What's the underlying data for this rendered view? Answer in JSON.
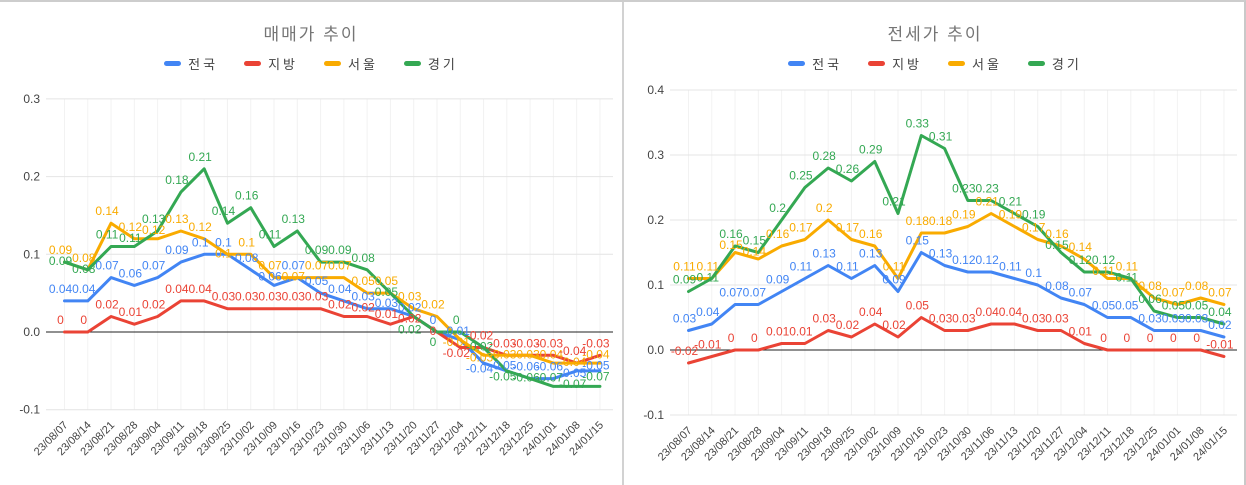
{
  "window": {
    "background": "#ffffff",
    "frame_border_color": "#cdcdcd"
  },
  "chart_data": [
    {
      "type": "line",
      "title": "매매가 추이",
      "legend_position": "top",
      "grid": true,
      "ylim": [
        -0.1,
        0.3
      ],
      "yticks": [
        0.3,
        0.2,
        0.1,
        0,
        -0.1
      ],
      "ytick_labels": [
        "0.3",
        "0.2",
        "0.1",
        "0.0",
        "-0.1"
      ],
      "categories": [
        "23/08/07",
        "23/08/14",
        "23/08/21",
        "23/08/28",
        "23/09/04",
        "23/09/11",
        "23/09/18",
        "23/09/25",
        "23/10/02",
        "23/10/09",
        "23/10/16",
        "23/10/23",
        "23/10/30",
        "23/11/06",
        "23/11/13",
        "23/11/20",
        "23/11/27",
        "23/12/04",
        "23/12/11",
        "23/12/18",
        "23/12/25",
        "24/01/01",
        "24/01/08",
        "24/01/15"
      ],
      "series": [
        {
          "name": "전국",
          "color": "#4285F4",
          "values": [
            0.04,
            0.04,
            0.07,
            0.06,
            0.07,
            0.09,
            0.1,
            0.1,
            0.08,
            0.06,
            0.07,
            0.05,
            0.04,
            0.03,
            0.03,
            0.02,
            0,
            -0.01,
            -0.04,
            -0.05,
            -0.06,
            -0.06,
            -0.05,
            -0.05
          ]
        },
        {
          "name": "지방",
          "color": "#EA4335",
          "values": [
            0,
            0,
            0.02,
            0.01,
            0.02,
            0.04,
            0.04,
            0.03,
            0.03,
            0.03,
            0.03,
            0.03,
            0.02,
            0.02,
            0.01,
            0.02,
            0,
            -0.02,
            -0.02,
            -0.03,
            -0.03,
            -0.03,
            -0.04,
            -0.03
          ]
        },
        {
          "name": "서울",
          "color": "#F9AB00",
          "values": [
            0.09,
            0.08,
            0.14,
            0.12,
            0.12,
            0.13,
            0.12,
            0.1,
            0.1,
            0.07,
            0.07,
            0.07,
            0.07,
            0.05,
            0.05,
            0.03,
            0.02,
            -0.01,
            -0.03,
            -0.03,
            -0.03,
            -0.04,
            -0.04,
            -0.04
          ]
        },
        {
          "name": "경기",
          "color": "#34A853",
          "values": [
            0.09,
            0.08,
            0.11,
            0.11,
            0.13,
            0.18,
            0.21,
            0.14,
            0.16,
            0.11,
            0.13,
            0.09,
            0.09,
            0.08,
            0.05,
            0.02,
            0,
            0,
            -0.02,
            -0.05,
            -0.06,
            -0.07,
            -0.07,
            -0.07
          ]
        }
      ]
    },
    {
      "type": "line",
      "title": "전세가 추이",
      "legend_position": "top",
      "grid": true,
      "ylim": [
        -0.1,
        0.4
      ],
      "yticks": [
        0.4,
        0.3,
        0.2,
        0.1,
        0,
        -0.1
      ],
      "ytick_labels": [
        "0.4",
        "0.3",
        "0.2",
        "0.1",
        "0.0",
        "-0.1"
      ],
      "categories": [
        "23/08/07",
        "23/08/14",
        "23/08/21",
        "23/08/28",
        "23/09/04",
        "23/09/11",
        "23/09/18",
        "23/09/25",
        "23/10/02",
        "23/10/09",
        "23/10/16",
        "23/10/23",
        "23/10/30",
        "23/11/06",
        "23/11/13",
        "23/11/20",
        "23/11/27",
        "23/12/04",
        "23/12/11",
        "23/12/18",
        "23/12/25",
        "24/01/01",
        "24/01/08",
        "24/01/15"
      ],
      "series": [
        {
          "name": "전국",
          "color": "#4285F4",
          "values": [
            0.03,
            0.04,
            0.07,
            0.07,
            0.09,
            0.11,
            0.13,
            0.11,
            0.13,
            0.09,
            0.15,
            0.13,
            0.12,
            0.12,
            0.11,
            0.1,
            0.08,
            0.07,
            0.05,
            0.05,
            0.03,
            0.03,
            0.03,
            0.02
          ]
        },
        {
          "name": "지방",
          "color": "#EA4335",
          "values": [
            -0.02,
            -0.01,
            0,
            0,
            0.01,
            0.01,
            0.03,
            0.02,
            0.04,
            0.02,
            0.05,
            0.03,
            0.03,
            0.04,
            0.04,
            0.03,
            0.03,
            0.01,
            0,
            0,
            0,
            0,
            0,
            -0.01
          ]
        },
        {
          "name": "서울",
          "color": "#F9AB00",
          "values": [
            0.11,
            0.11,
            0.15,
            0.14,
            0.16,
            0.17,
            0.2,
            0.17,
            0.16,
            0.11,
            0.18,
            0.18,
            0.19,
            0.21,
            0.19,
            0.17,
            0.16,
            0.14,
            0.11,
            0.11,
            0.08,
            0.07,
            0.08,
            0.07
          ]
        },
        {
          "name": "경기",
          "color": "#34A853",
          "values": [
            0.09,
            0.11,
            0.16,
            0.15,
            0.2,
            0.25,
            0.28,
            0.26,
            0.29,
            0.21,
            0.33,
            0.31,
            0.23,
            0.23,
            0.21,
            0.19,
            0.15,
            0.12,
            0.12,
            0.11,
            0.06,
            0.05,
            0.05,
            0.04
          ]
        }
      ]
    }
  ]
}
